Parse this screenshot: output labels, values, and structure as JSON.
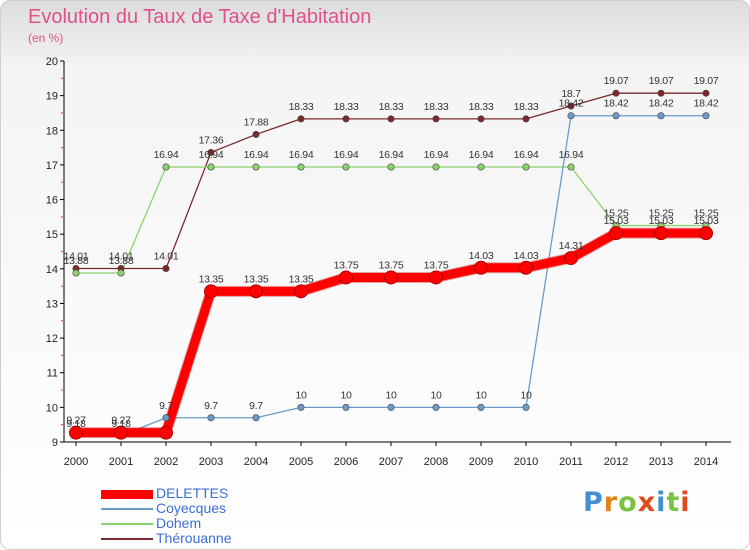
{
  "header": {
    "title": "Evolution du Taux de Taxe d'Habitation",
    "subtitle": "(en %)"
  },
  "logo": {
    "letters": [
      "P",
      "r",
      "o",
      "x",
      "i",
      "t",
      "i"
    ],
    "colors": [
      "#3f8fd2",
      "#e0851b",
      "#7cc241",
      "#e04a1a",
      "#3f8fd2",
      "#7cc241",
      "#e04a1a"
    ]
  },
  "chart_data": {
    "type": "line",
    "x": [
      "2000",
      "2001",
      "2002",
      "2003",
      "2004",
      "2005",
      "2006",
      "2007",
      "2008",
      "2009",
      "2010",
      "2011",
      "2012",
      "2013",
      "2014"
    ],
    "ylim": [
      9,
      20
    ],
    "yticks": [
      "9",
      "10",
      "11",
      "12",
      "13",
      "14",
      "15",
      "16",
      "17",
      "18",
      "19",
      "20"
    ],
    "grid": false,
    "legend": "bottom-left",
    "series": [
      {
        "name": "DELETTES",
        "color": "#ff0000",
        "values": [
          9.27,
          9.27,
          9.27,
          13.35,
          13.35,
          13.35,
          13.75,
          13.75,
          13.75,
          14.03,
          14.03,
          14.31,
          15.03,
          15.03,
          15.03
        ],
        "labels": [
          "9.27",
          "9.27",
          "",
          "13.35",
          "13.35",
          "13.35",
          "13.75",
          "13.75",
          "13.75",
          "14.03",
          "14.03",
          "14.31",
          "15.03",
          "15.03",
          "15.03"
        ]
      },
      {
        "name": "Coyecques",
        "color": "#6c9bc8",
        "values": [
          9.18,
          9.18,
          9.7,
          9.7,
          9.7,
          10,
          10,
          10,
          10,
          10,
          10,
          18.42,
          18.42,
          18.42,
          18.42
        ],
        "labels": [
          "9.18",
          "9.18",
          "9.7",
          "9.7",
          "9.7",
          "10",
          "10",
          "10",
          "10",
          "10",
          "10",
          "18.42",
          "18.42",
          "18.42",
          "18.42"
        ]
      },
      {
        "name": "Dohem",
        "color": "#8bd36e",
        "values": [
          13.88,
          13.88,
          16.94,
          16.94,
          16.94,
          16.94,
          16.94,
          16.94,
          16.94,
          16.94,
          16.94,
          16.94,
          15.25,
          15.25,
          15.25
        ],
        "labels": [
          "13.88",
          "13.88",
          "16.94",
          "16.94",
          "16.94",
          "16.94",
          "16.94",
          "16.94",
          "16.94",
          "16.94",
          "16.94",
          "16.94",
          "15.25",
          "15.25",
          "15.25"
        ]
      },
      {
        "name": "Thérouanne",
        "color": "#7a2a2a",
        "values": [
          14.01,
          14.01,
          14.01,
          17.36,
          17.88,
          18.33,
          18.33,
          18.33,
          18.33,
          18.33,
          18.33,
          18.7,
          19.07,
          19.07,
          19.07
        ],
        "labels": [
          "14.01",
          "14.01",
          "14.01",
          "17.36",
          "17.88",
          "18.33",
          "18.33",
          "18.33",
          "18.33",
          "18.33",
          "18.33",
          "18.7",
          "19.07",
          "19.07",
          "19.07"
        ]
      }
    ]
  }
}
